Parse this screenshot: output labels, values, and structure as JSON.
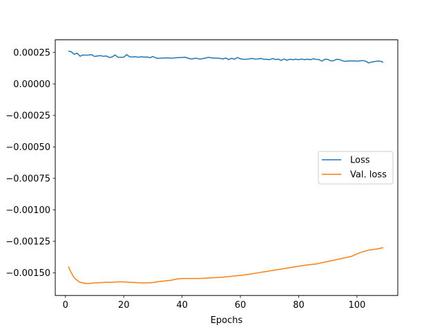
{
  "chart_data": {
    "type": "line",
    "title": "",
    "xlabel": "Epochs",
    "ylabel": "",
    "xlim": [
      -3.5,
      114
    ],
    "ylim": [
      -0.00168,
      0.00035
    ],
    "xticks": [
      0,
      20,
      40,
      60,
      80,
      100
    ],
    "xtick_labels": [
      "0",
      "20",
      "40",
      "60",
      "80",
      "100"
    ],
    "yticks": [
      0.00025,
      0.0,
      -0.00025,
      -0.0005,
      -0.00075,
      -0.001,
      -0.00125,
      -0.0015
    ],
    "ytick_labels": [
      "0.00025",
      "0.00000",
      "−0.00025",
      "−0.00050",
      "−0.00075",
      "−0.00100",
      "−0.00125",
      "−0.00150"
    ],
    "grid": false,
    "legend_position": "center-right",
    "series": [
      {
        "name": "Loss",
        "color": "#1f77b4",
        "x": [
          1,
          2,
          3,
          4,
          5,
          6,
          7,
          8,
          9,
          10,
          11,
          12,
          13,
          14,
          15,
          16,
          17,
          18,
          19,
          20,
          21,
          22,
          23,
          24,
          25,
          26,
          27,
          28,
          29,
          30,
          31,
          32,
          33,
          34,
          35,
          36,
          37,
          38,
          39,
          40,
          41,
          42,
          43,
          44,
          45,
          46,
          47,
          48,
          49,
          50,
          51,
          52,
          53,
          54,
          55,
          56,
          57,
          58,
          59,
          60,
          61,
          62,
          63,
          64,
          65,
          66,
          67,
          68,
          69,
          70,
          71,
          72,
          73,
          74,
          75,
          76,
          77,
          78,
          79,
          80,
          81,
          82,
          83,
          84,
          85,
          86,
          87,
          88,
          89,
          90,
          91,
          92,
          93,
          94,
          95,
          96,
          97,
          98,
          99,
          100,
          101,
          102,
          103,
          104,
          105,
          106,
          107,
          108,
          109
        ],
        "y": [
          0.00026,
          0.000255,
          0.000235,
          0.000245,
          0.00022,
          0.00023,
          0.000228,
          0.00023,
          0.000232,
          0.000218,
          0.000222,
          0.000225,
          0.000219,
          0.000222,
          0.00021,
          0.000214,
          0.00023,
          0.000212,
          0.000211,
          0.000212,
          0.000233,
          0.000215,
          0.000214,
          0.000216,
          0.000212,
          0.000215,
          0.000213,
          0.000214,
          0.000208,
          0.000218,
          0.000206,
          0.000203,
          0.000205,
          0.000206,
          0.000207,
          0.000205,
          0.000206,
          0.000208,
          0.000209,
          0.00021,
          0.000212,
          0.000205,
          0.000198,
          0.000201,
          0.000204,
          0.000197,
          0.0002,
          0.000205,
          0.000211,
          0.000207,
          0.000205,
          0.000205,
          0.000203,
          0.000198,
          0.000206,
          0.000193,
          0.000204,
          0.000196,
          0.00021,
          0.000199,
          0.000196,
          0.000196,
          0.000199,
          0.000203,
          0.000197,
          0.000198,
          0.000203,
          0.000195,
          0.000196,
          0.000192,
          0.000202,
          0.000194,
          0.000197,
          0.000186,
          0.000198,
          0.000188,
          0.000196,
          0.000192,
          0.000197,
          0.000192,
          0.000198,
          0.000192,
          0.000197,
          0.000192,
          0.0002,
          0.000195,
          0.000193,
          0.000181,
          0.000196,
          0.000195,
          0.000183,
          0.000185,
          0.000196,
          0.000193,
          0.000184,
          0.000179,
          0.000183,
          0.000182,
          0.000183,
          0.00018,
          0.000183,
          0.000186,
          0.00018,
          0.000167,
          0.000173,
          0.000178,
          0.000181,
          0.000181,
          0.000171
        ]
      },
      {
        "name": "Val. loss",
        "color": "#ff7f0e",
        "x": [
          1,
          2,
          3,
          4,
          5,
          6,
          7,
          8,
          10,
          12,
          14,
          16,
          18,
          20,
          22,
          24,
          26,
          28,
          30,
          32,
          34,
          36,
          38,
          40,
          43,
          46,
          50,
          54,
          58,
          62,
          66,
          70,
          74,
          78,
          82,
          86,
          90,
          94,
          98,
          101,
          104,
          107,
          109
        ],
        "y": [
          -0.00145,
          -0.0015,
          -0.00154,
          -0.00156,
          -0.001575,
          -0.00158,
          -0.001585,
          -0.001585,
          -0.00158,
          -0.001578,
          -0.001575,
          -0.001575,
          -0.001572,
          -0.001572,
          -0.001575,
          -0.001577,
          -0.00158,
          -0.00158,
          -0.001577,
          -0.00157,
          -0.001565,
          -0.00156,
          -0.00155,
          -0.001545,
          -0.001545,
          -0.001545,
          -0.00154,
          -0.001535,
          -0.001525,
          -0.001515,
          -0.0015,
          -0.001485,
          -0.00147,
          -0.001455,
          -0.00144,
          -0.00143,
          -0.00141,
          -0.00139,
          -0.00137,
          -0.00134,
          -0.00132,
          -0.00131,
          -0.0013
        ]
      }
    ]
  }
}
